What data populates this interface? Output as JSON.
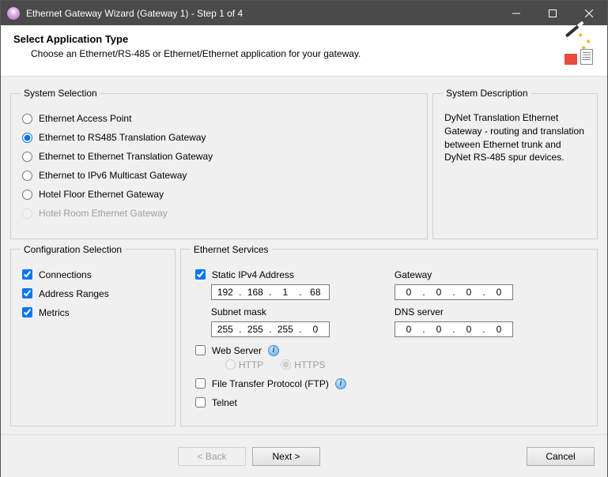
{
  "window": {
    "title": "Ethernet Gateway Wizard (Gateway 1) - Step 1 of 4"
  },
  "header": {
    "title": "Select Application Type",
    "subtitle": "Choose an Ethernet/RS-485 or Ethernet/Ethernet application for your gateway."
  },
  "systemSelection": {
    "legend": "System Selection",
    "options": [
      {
        "label": "Ethernet Access Point",
        "checked": false,
        "disabled": false
      },
      {
        "label": "Ethernet to RS485 Translation Gateway",
        "checked": true,
        "disabled": false
      },
      {
        "label": "Ethernet to Ethernet Translation Gateway",
        "checked": false,
        "disabled": false
      },
      {
        "label": "Ethernet to IPv6 Multicast Gateway",
        "checked": false,
        "disabled": false
      },
      {
        "label": "Hotel Floor Ethernet Gateway",
        "checked": false,
        "disabled": false
      },
      {
        "label": "Hotel Room Ethernet Gateway",
        "checked": false,
        "disabled": true
      }
    ]
  },
  "systemDescription": {
    "legend": "System Description",
    "text": "DyNet Translation Ethernet Gateway - routing and translation between Ethernet trunk and DyNet RS-485 spur devices."
  },
  "configSelection": {
    "legend": "Configuration Selection",
    "options": [
      {
        "label": "Connections",
        "checked": true
      },
      {
        "label": "Address Ranges",
        "checked": true
      },
      {
        "label": "Metrics",
        "checked": true
      }
    ]
  },
  "ethernetServices": {
    "legend": "Ethernet Services",
    "staticIpv4": {
      "label": "Static IPv4 Address",
      "checked": true,
      "value": [
        "192",
        "168",
        "1",
        "68"
      ]
    },
    "gateway": {
      "label": "Gateway",
      "value": [
        "0",
        "0",
        "0",
        "0"
      ]
    },
    "subnet": {
      "label": "Subnet mask",
      "value": [
        "255",
        "255",
        "255",
        "0"
      ]
    },
    "dns": {
      "label": "DNS server",
      "value": [
        "0",
        "0",
        "0",
        "0"
      ]
    },
    "webServer": {
      "label": "Web Server",
      "checked": false,
      "http": {
        "label": "HTTP",
        "checked": false
      },
      "https": {
        "label": "HTTPS",
        "checked": true
      }
    },
    "ftp": {
      "label": "File Transfer Protocol (FTP)",
      "checked": false
    },
    "telnet": {
      "label": "Telnet",
      "checked": false
    }
  },
  "footer": {
    "back": "<  Back",
    "next": "Next  >",
    "cancel": "Cancel"
  },
  "colors": {
    "titlebar": "#4a4a4a",
    "client": "#f0f0f0",
    "border": "#d0d0d0",
    "disabledText": "#9e9e9e"
  }
}
